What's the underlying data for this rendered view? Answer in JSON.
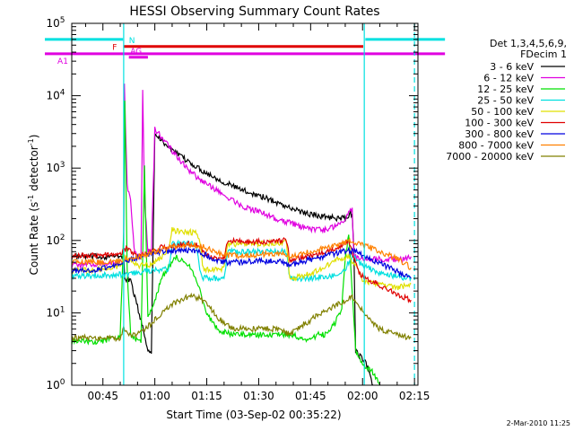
{
  "chart_data": {
    "type": "line",
    "title": "HESSI Observing Summary Count Rates",
    "xlabel": "Start Time (03-Sep-02 00:35:22)",
    "ylabel_main": "Count Rate (s",
    "ylabel_sup1": "-1",
    "ylabel_mid": " detector",
    "ylabel_sup2": "-1",
    "ylabel_end": ")",
    "y_scale": "log",
    "ylim": [
      1,
      100000
    ],
    "xlim_minutes": [
      36,
      136
    ],
    "x_ticks": [
      {
        "m": 45,
        "label": "00:45"
      },
      {
        "m": 60,
        "label": "01:00"
      },
      {
        "m": 75,
        "label": "01:15"
      },
      {
        "m": 90,
        "label": "01:30"
      },
      {
        "m": 105,
        "label": "01:45"
      },
      {
        "m": 120,
        "label": "02:00"
      },
      {
        "m": 135,
        "label": "02:15"
      }
    ],
    "y_ticks": [
      {
        "v": 1,
        "base": "10",
        "exp": "0"
      },
      {
        "v": 10,
        "base": "10",
        "exp": "1"
      },
      {
        "v": 100,
        "base": "10",
        "exp": "2"
      },
      {
        "v": 1000,
        "base": "10",
        "exp": "3"
      },
      {
        "v": 10000,
        "base": "10",
        "exp": "4"
      },
      {
        "v": 100000,
        "base": "10",
        "exp": "5"
      }
    ],
    "legend_header": [
      "Det 1,3,4,5,6,9,",
      "FDecim 1"
    ],
    "series": [
      {
        "name": "3 - 6 keV",
        "color": "#000000",
        "points": [
          [
            36,
            60
          ],
          [
            44,
            60
          ],
          [
            51,
            60
          ],
          [
            51.3,
            30
          ],
          [
            53,
            28
          ],
          [
            55,
            12
          ],
          [
            57,
            5
          ],
          [
            58,
            3
          ],
          [
            59,
            3
          ],
          [
            60,
            3000
          ],
          [
            62,
            2400
          ],
          [
            66,
            1600
          ],
          [
            70,
            1200
          ],
          [
            75,
            850
          ],
          [
            80,
            640
          ],
          [
            85,
            500
          ],
          [
            90,
            420
          ],
          [
            95,
            340
          ],
          [
            100,
            270
          ],
          [
            105,
            230
          ],
          [
            110,
            210
          ],
          [
            115,
            200
          ],
          [
            117,
            240
          ],
          [
            117.5,
            70
          ],
          [
            118,
            3
          ],
          [
            121,
            2
          ],
          [
            123,
            1
          ]
        ]
      },
      {
        "name": "6 - 12 keV",
        "color": "#e000e0",
        "points": [
          [
            36,
            45
          ],
          [
            44,
            48
          ],
          [
            51,
            50
          ],
          [
            51.2,
            15000
          ],
          [
            52,
            600
          ],
          [
            53,
            350
          ],
          [
            54,
            80
          ],
          [
            55,
            60
          ],
          [
            56,
            60
          ],
          [
            56.5,
            13000
          ],
          [
            57,
            400
          ],
          [
            58,
            70
          ],
          [
            59,
            70
          ],
          [
            60,
            3500
          ],
          [
            63,
            2300
          ],
          [
            66,
            1500
          ],
          [
            70,
            900
          ],
          [
            75,
            600
          ],
          [
            80,
            420
          ],
          [
            85,
            300
          ],
          [
            90,
            250
          ],
          [
            95,
            200
          ],
          [
            100,
            170
          ],
          [
            105,
            140
          ],
          [
            110,
            140
          ],
          [
            114,
            180
          ],
          [
            117,
            270
          ],
          [
            117.5,
            60
          ],
          [
            120,
            55
          ],
          [
            126,
            55
          ],
          [
            132,
            55
          ],
          [
            134,
            60
          ]
        ]
      },
      {
        "name": "12 - 25 keV",
        "color": "#00e000",
        "points": [
          [
            36,
            4
          ],
          [
            44,
            4
          ],
          [
            49,
            4.5
          ],
          [
            50,
            5
          ],
          [
            51,
            120
          ],
          [
            51.3,
            9000
          ],
          [
            52,
            40
          ],
          [
            53,
            5
          ],
          [
            55,
            4
          ],
          [
            56,
            4
          ],
          [
            57,
            1000
          ],
          [
            58,
            9
          ],
          [
            60,
            15
          ],
          [
            62,
            30
          ],
          [
            66,
            60
          ],
          [
            70,
            45
          ],
          [
            73,
            20
          ],
          [
            75,
            10
          ],
          [
            78,
            6
          ],
          [
            82,
            5
          ],
          [
            86,
            5
          ],
          [
            90,
            5
          ],
          [
            95,
            5
          ],
          [
            100,
            5
          ],
          [
            104,
            4
          ],
          [
            107,
            5
          ],
          [
            109,
            5
          ],
          [
            112,
            7
          ],
          [
            114,
            12
          ],
          [
            115,
            60
          ],
          [
            116,
            120
          ],
          [
            117,
            20
          ],
          [
            118,
            3
          ],
          [
            120,
            2
          ],
          [
            123,
            1.5
          ],
          [
            125,
            1
          ]
        ]
      },
      {
        "name": "25 - 50 keV",
        "color": "#00e0e0",
        "points": [
          [
            36,
            32
          ],
          [
            44,
            33
          ],
          [
            51,
            34
          ],
          [
            53,
            35
          ],
          [
            55,
            36
          ],
          [
            58,
            38
          ],
          [
            62,
            40
          ],
          [
            64,
            40
          ],
          [
            65,
            90
          ],
          [
            72,
            90
          ],
          [
            73,
            40
          ],
          [
            74,
            30
          ],
          [
            75,
            30
          ],
          [
            78,
            30
          ],
          [
            80,
            30
          ],
          [
            81,
            70
          ],
          [
            90,
            70
          ],
          [
            98,
            70
          ],
          [
            99,
            30
          ],
          [
            100,
            30
          ],
          [
            105,
            30
          ],
          [
            110,
            32
          ],
          [
            114,
            34
          ],
          [
            117,
            60
          ],
          [
            119,
            50
          ],
          [
            120,
            45
          ],
          [
            125,
            35
          ],
          [
            130,
            32
          ],
          [
            134,
            30
          ]
        ]
      },
      {
        "name": "50 - 100 keV",
        "color": "#e0e000",
        "points": [
          [
            36,
            38
          ],
          [
            44,
            40
          ],
          [
            50,
            45
          ],
          [
            51,
            60
          ],
          [
            55,
            45
          ],
          [
            58,
            45
          ],
          [
            62,
            60
          ],
          [
            64,
            80
          ],
          [
            65,
            140
          ],
          [
            68,
            130
          ],
          [
            72,
            130
          ],
          [
            73,
            90
          ],
          [
            74,
            40
          ],
          [
            75,
            40
          ],
          [
            78,
            40
          ],
          [
            80,
            40
          ],
          [
            81,
            90
          ],
          [
            90,
            90
          ],
          [
            98,
            95
          ],
          [
            99,
            30
          ],
          [
            100,
            30
          ],
          [
            105,
            35
          ],
          [
            110,
            45
          ],
          [
            113,
            55
          ],
          [
            116,
            60
          ],
          [
            119,
            40
          ],
          [
            120,
            28
          ],
          [
            125,
            25
          ],
          [
            130,
            22
          ],
          [
            134,
            25
          ]
        ]
      },
      {
        "name": "100 - 300 keV",
        "color": "#e00000",
        "points": [
          [
            36,
            62
          ],
          [
            44,
            62
          ],
          [
            50,
            64
          ],
          [
            52,
            80
          ],
          [
            55,
            60
          ],
          [
            58,
            65
          ],
          [
            62,
            80
          ],
          [
            66,
            85
          ],
          [
            70,
            90
          ],
          [
            73,
            85
          ],
          [
            75,
            60
          ],
          [
            78,
            56
          ],
          [
            80,
            56
          ],
          [
            81,
            100
          ],
          [
            90,
            95
          ],
          [
            98,
            100
          ],
          [
            99,
            55
          ],
          [
            100,
            55
          ],
          [
            105,
            60
          ],
          [
            110,
            70
          ],
          [
            113,
            80
          ],
          [
            116,
            100
          ],
          [
            119,
            35
          ],
          [
            121,
            30
          ],
          [
            125,
            24
          ],
          [
            130,
            18
          ],
          [
            134,
            15
          ]
        ]
      },
      {
        "name": "300 - 800 keV",
        "color": "#0000e0",
        "points": [
          [
            36,
            38
          ],
          [
            44,
            40
          ],
          [
            50,
            48
          ],
          [
            53,
            55
          ],
          [
            56,
            62
          ],
          [
            60,
            68
          ],
          [
            64,
            72
          ],
          [
            68,
            74
          ],
          [
            72,
            72
          ],
          [
            75,
            62
          ],
          [
            78,
            52
          ],
          [
            80,
            50
          ],
          [
            84,
            50
          ],
          [
            90,
            52
          ],
          [
            96,
            52
          ],
          [
            99,
            45
          ],
          [
            101,
            48
          ],
          [
            105,
            55
          ],
          [
            110,
            62
          ],
          [
            114,
            70
          ],
          [
            117,
            72
          ],
          [
            119,
            68
          ],
          [
            121,
            60
          ],
          [
            125,
            48
          ],
          [
            130,
            38
          ],
          [
            134,
            30
          ]
        ]
      },
      {
        "name": "800 - 7000 keV",
        "color": "#ff8000",
        "points": [
          [
            36,
            50
          ],
          [
            44,
            50
          ],
          [
            50,
            52
          ],
          [
            54,
            58
          ],
          [
            58,
            65
          ],
          [
            62,
            75
          ],
          [
            66,
            82
          ],
          [
            70,
            88
          ],
          [
            73,
            85
          ],
          [
            75,
            78
          ],
          [
            78,
            68
          ],
          [
            80,
            62
          ],
          [
            84,
            62
          ],
          [
            90,
            64
          ],
          [
            96,
            66
          ],
          [
            99,
            60
          ],
          [
            101,
            62
          ],
          [
            105,
            70
          ],
          [
            110,
            80
          ],
          [
            114,
            90
          ],
          [
            117,
            98
          ],
          [
            119,
            90
          ],
          [
            122,
            80
          ],
          [
            126,
            68
          ],
          [
            130,
            55
          ],
          [
            134,
            42
          ]
        ]
      },
      {
        "name": "7000 - 20000 keV",
        "color": "#808000",
        "points": [
          [
            36,
            4.5
          ],
          [
            44,
            4.5
          ],
          [
            50,
            4.5
          ],
          [
            51,
            6
          ],
          [
            53,
            5
          ],
          [
            55,
            5
          ],
          [
            57,
            6
          ],
          [
            58,
            6.5
          ],
          [
            60,
            8
          ],
          [
            63,
            11
          ],
          [
            66,
            14
          ],
          [
            70,
            17
          ],
          [
            73,
            16
          ],
          [
            75,
            13
          ],
          [
            78,
            9
          ],
          [
            80,
            7
          ],
          [
            83,
            6
          ],
          [
            86,
            6
          ],
          [
            90,
            6
          ],
          [
            96,
            6
          ],
          [
            99,
            5
          ],
          [
            101,
            6
          ],
          [
            105,
            8
          ],
          [
            110,
            11
          ],
          [
            114,
            14
          ],
          [
            117,
            17
          ],
          [
            119,
            13
          ],
          [
            121,
            9
          ],
          [
            125,
            6
          ],
          [
            130,
            5
          ],
          [
            134,
            4.5
          ]
        ]
      }
    ],
    "flag_bars": [
      {
        "label": "N",
        "color": "#00e0e0",
        "level": 60000,
        "segments": [
          [
            36,
            50.8
          ],
          [
            120.8,
            135
          ]
        ]
      },
      {
        "label": "F",
        "color": "#e00000",
        "level": 48000,
        "segments": [
          [
            51,
            120.2
          ]
        ]
      },
      {
        "label": "AG",
        "color": "#e000e0",
        "level": 34000,
        "segments": [
          [
            52.5,
            58
          ]
        ]
      },
      {
        "label": "A1",
        "color": "#e000e0",
        "level": 38000,
        "segments": [
          [
            36,
            135
          ]
        ]
      }
    ],
    "vlines": [
      {
        "m": 51,
        "color": "#00e0e0",
        "style": "solid"
      },
      {
        "m": 120.5,
        "color": "#00e0e0",
        "style": "solid"
      },
      {
        "m": 135,
        "color": "#00e0e0",
        "style": "dashed"
      }
    ],
    "footer_date": "2-Mar-2010 11:25"
  }
}
